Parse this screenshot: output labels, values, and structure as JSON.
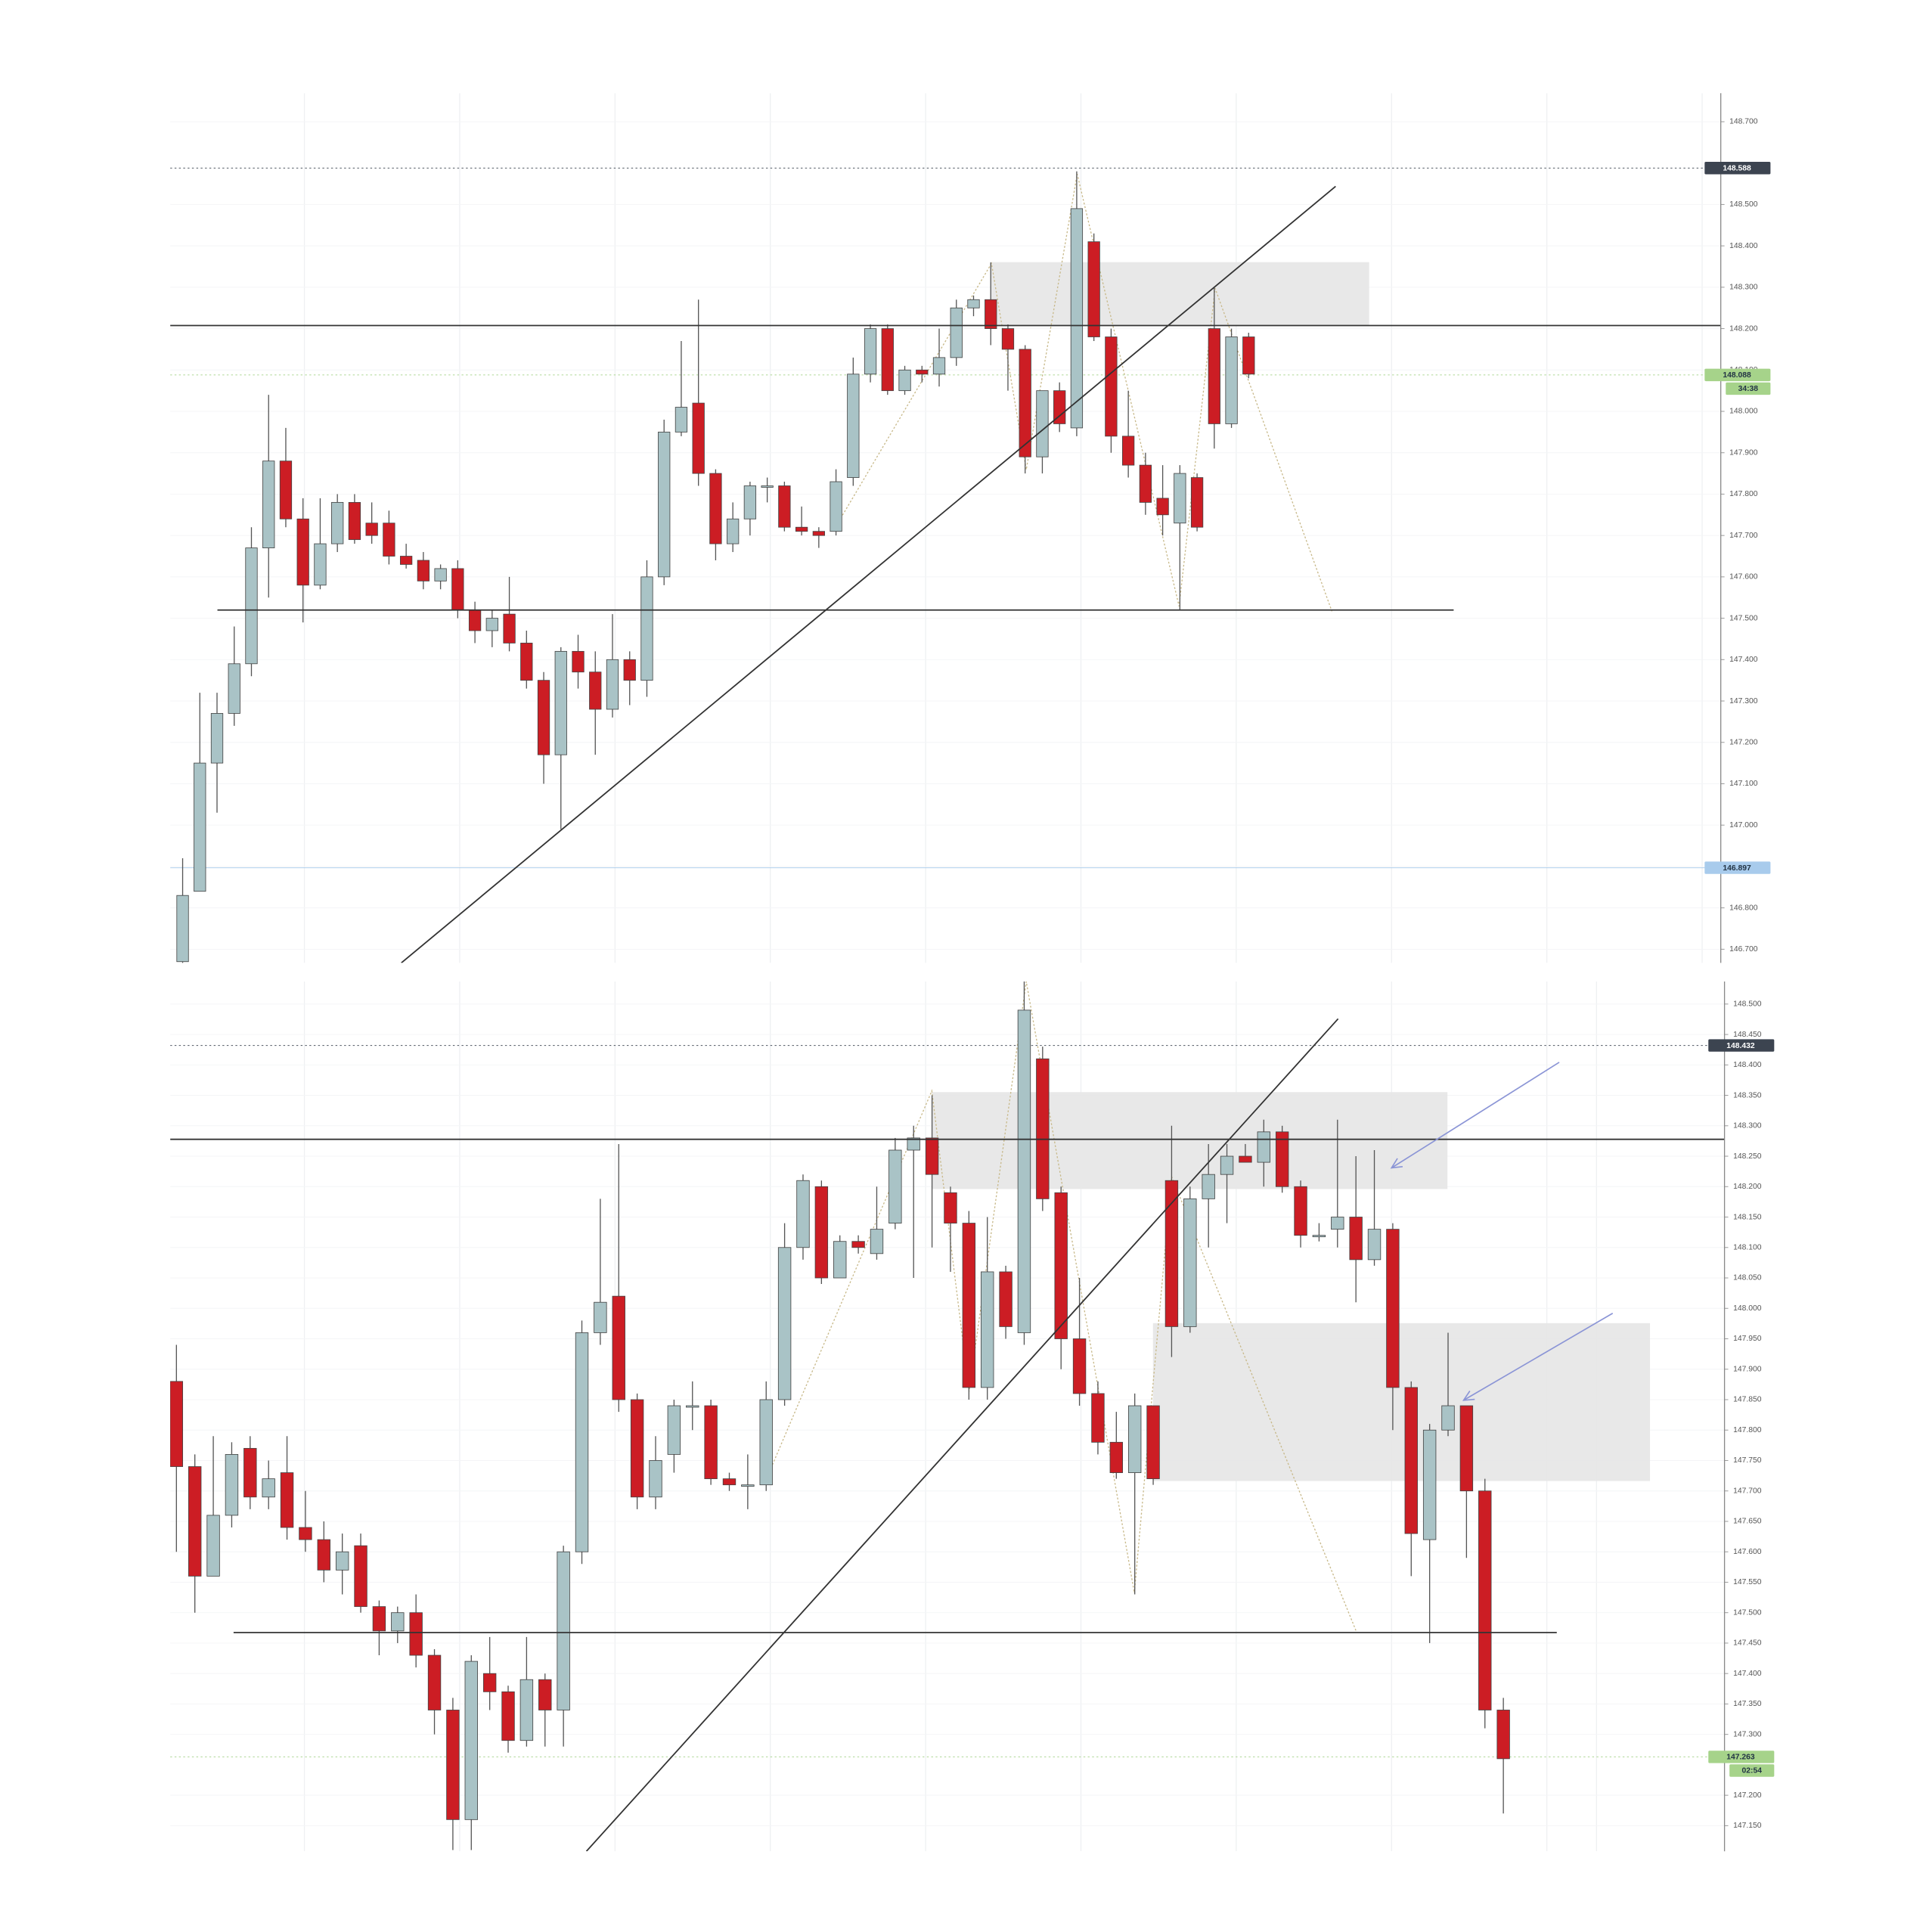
{
  "chart_data": [
    {
      "type": "candlestick",
      "up_color": "#a9c3c6",
      "down_color": "#cc1d24",
      "grid": true,
      "ylim": [
        146.667,
        148.769
      ],
      "yticks": [
        {
          "value": 148.7,
          "label": "148.700"
        },
        {
          "value": 148.5,
          "label": "148.500"
        },
        {
          "value": 148.4,
          "label": "148.400"
        },
        {
          "value": 148.3,
          "label": "148.300"
        },
        {
          "value": 148.2,
          "label": "148.200"
        },
        {
          "value": 148.1,
          "label": "148.100"
        },
        {
          "value": 148.0,
          "label": "148.000"
        },
        {
          "value": 147.9,
          "label": "147.900"
        },
        {
          "value": 147.8,
          "label": "147.800"
        },
        {
          "value": 147.7,
          "label": "147.700"
        },
        {
          "value": 147.6,
          "label": "147.600"
        },
        {
          "value": 147.5,
          "label": "147.500"
        },
        {
          "value": 147.4,
          "label": "147.400"
        },
        {
          "value": 147.3,
          "label": "147.300"
        },
        {
          "value": 147.2,
          "label": "147.200"
        },
        {
          "value": 147.1,
          "label": "147.100"
        },
        {
          "value": 147.0,
          "label": "147.000"
        },
        {
          "value": 146.9,
          "label": "146.900"
        },
        {
          "value": 146.8,
          "label": "146.800"
        },
        {
          "value": 146.7,
          "label": "146.700"
        }
      ],
      "price_tags": [
        {
          "value": 148.588,
          "color": "#3c4450"
        },
        {
          "value": 148.088,
          "color": "#a6d38a",
          "timer": "34:38"
        },
        {
          "value": 146.897,
          "color": "#a8cbec"
        }
      ],
      "open": [
        146.67,
        146.84,
        147.15,
        147.27,
        147.39,
        147.67,
        147.88,
        147.74,
        147.58,
        147.68,
        147.78,
        147.73,
        147.73,
        147.65,
        147.64,
        147.59,
        147.62,
        147.52,
        147.47,
        147.51,
        147.44,
        147.35,
        147.17,
        147.42,
        147.37,
        147.28,
        147.4,
        147.35,
        147.6,
        147.95,
        148.02,
        147.85,
        147.68,
        147.74,
        147.82,
        147.82,
        147.72,
        147.71,
        147.71,
        147.84,
        148.09,
        148.2,
        148.05,
        148.1,
        148.09,
        148.13,
        148.25,
        148.27,
        148.2,
        148.15,
        147.89,
        148.05,
        147.96,
        148.41,
        148.18,
        147.94,
        147.87,
        147.79,
        147.73,
        147.84,
        148.2,
        147.97,
        148.18
      ],
      "high": [
        146.92,
        147.32,
        147.32,
        147.48,
        147.72,
        148.04,
        147.96,
        147.79,
        147.79,
        147.8,
        147.8,
        147.78,
        147.76,
        147.68,
        147.66,
        147.63,
        147.64,
        147.54,
        147.52,
        147.6,
        147.47,
        147.37,
        147.43,
        147.46,
        147.42,
        147.51,
        147.42,
        147.64,
        147.98,
        148.17,
        148.27,
        147.86,
        147.78,
        147.83,
        147.84,
        147.83,
        147.77,
        147.72,
        147.86,
        148.13,
        148.21,
        148.21,
        148.11,
        148.11,
        148.2,
        148.27,
        148.28,
        148.36,
        148.21,
        148.16,
        148.05,
        148.07,
        148.58,
        148.43,
        148.2,
        148.05,
        147.9,
        147.87,
        147.87,
        147.85,
        148.3,
        148.2,
        148.19
      ],
      "low": [
        146.66,
        146.84,
        147.03,
        147.24,
        147.36,
        147.55,
        147.72,
        147.49,
        147.57,
        147.66,
        147.68,
        147.68,
        147.63,
        147.62,
        147.57,
        147.57,
        147.5,
        147.44,
        147.43,
        147.42,
        147.33,
        147.1,
        146.99,
        147.33,
        147.17,
        147.26,
        147.29,
        147.31,
        147.58,
        147.94,
        147.82,
        147.64,
        147.66,
        147.7,
        147.78,
        147.71,
        147.7,
        147.67,
        147.7,
        147.82,
        148.07,
        148.04,
        148.04,
        148.07,
        148.06,
        148.11,
        148.23,
        148.16,
        148.05,
        147.85,
        147.85,
        147.95,
        147.94,
        148.17,
        147.9,
        147.84,
        147.75,
        147.7,
        147.52,
        147.71,
        147.91,
        147.96,
        148.08
      ],
      "close": [
        146.83,
        147.15,
        147.27,
        147.39,
        147.67,
        147.88,
        147.74,
        147.58,
        147.68,
        147.78,
        147.69,
        147.7,
        147.65,
        147.63,
        147.59,
        147.62,
        147.52,
        147.47,
        147.5,
        147.44,
        147.35,
        147.17,
        147.42,
        147.37,
        147.28,
        147.4,
        147.35,
        147.6,
        147.95,
        148.01,
        147.85,
        147.68,
        147.74,
        147.82,
        147.82,
        147.72,
        147.71,
        147.7,
        147.83,
        148.09,
        148.2,
        148.05,
        148.1,
        148.09,
        148.13,
        148.25,
        148.27,
        148.2,
        148.15,
        147.89,
        148.05,
        147.97,
        148.49,
        148.18,
        147.94,
        147.87,
        147.78,
        147.75,
        147.85,
        147.72,
        147.97,
        148.18,
        148.09
      ]
    },
    {
      "type": "candlestick",
      "up_color": "#a9c3c6",
      "down_color": "#cc1d24",
      "grid": true,
      "ylim": [
        147.108,
        148.537
      ],
      "yticks": [
        {
          "value": 148.5,
          "label": "148.500"
        },
        {
          "value": 148.45,
          "label": "148.450"
        },
        {
          "value": 148.4,
          "label": "148.400"
        },
        {
          "value": 148.35,
          "label": "148.350"
        },
        {
          "value": 148.3,
          "label": "148.300"
        },
        {
          "value": 148.25,
          "label": "148.250"
        },
        {
          "value": 148.2,
          "label": "148.200"
        },
        {
          "value": 148.15,
          "label": "148.150"
        },
        {
          "value": 148.1,
          "label": "148.100"
        },
        {
          "value": 148.05,
          "label": "148.050"
        },
        {
          "value": 148.0,
          "label": "148.000"
        },
        {
          "value": 147.95,
          "label": "147.950"
        },
        {
          "value": 147.9,
          "label": "147.900"
        },
        {
          "value": 147.85,
          "label": "147.850"
        },
        {
          "value": 147.8,
          "label": "147.800"
        },
        {
          "value": 147.75,
          "label": "147.750"
        },
        {
          "value": 147.7,
          "label": "147.700"
        },
        {
          "value": 147.65,
          "label": "147.650"
        },
        {
          "value": 147.6,
          "label": "147.600"
        },
        {
          "value": 147.55,
          "label": "147.550"
        },
        {
          "value": 147.5,
          "label": "147.500"
        },
        {
          "value": 147.45,
          "label": "147.450"
        },
        {
          "value": 147.4,
          "label": "147.400"
        },
        {
          "value": 147.35,
          "label": "147.350"
        },
        {
          "value": 147.3,
          "label": "147.300"
        },
        {
          "value": 147.2,
          "label": "147.200"
        },
        {
          "value": 147.15,
          "label": "147.150"
        }
      ],
      "price_tags": [
        {
          "value": 148.432,
          "color": "#3c4450"
        },
        {
          "value": 147.263,
          "color": "#a6d38a",
          "timer": "02:54"
        }
      ],
      "open": [
        147.88,
        147.74,
        147.56,
        147.66,
        147.77,
        147.69,
        147.73,
        147.64,
        147.62,
        147.57,
        147.61,
        147.51,
        147.47,
        147.5,
        147.43,
        147.34,
        147.16,
        147.4,
        147.37,
        147.29,
        147.39,
        147.34,
        147.6,
        147.96,
        148.02,
        147.85,
        147.69,
        147.76,
        147.84,
        147.84,
        147.72,
        147.71,
        147.71,
        147.85,
        148.1,
        148.2,
        148.05,
        148.11,
        148.09,
        148.14,
        148.26,
        148.28,
        148.19,
        148.14,
        147.87,
        148.06,
        147.96,
        148.41,
        148.19,
        147.95,
        147.86,
        147.78,
        147.73,
        147.84,
        148.21,
        147.97,
        148.18,
        148.22,
        148.25,
        148.24,
        148.29,
        148.2,
        148.12,
        148.13,
        148.15,
        148.08,
        148.13,
        147.87,
        147.62,
        147.8,
        147.84,
        147.7,
        147.34
      ],
      "high": [
        147.94,
        147.76,
        147.79,
        147.78,
        147.79,
        147.75,
        147.79,
        147.7,
        147.65,
        147.63,
        147.63,
        147.52,
        147.51,
        147.53,
        147.44,
        147.36,
        147.43,
        147.46,
        147.38,
        147.46,
        147.4,
        147.61,
        147.98,
        148.18,
        148.27,
        147.86,
        147.79,
        147.85,
        147.88,
        147.85,
        147.73,
        147.76,
        147.88,
        148.14,
        148.22,
        148.21,
        148.12,
        148.12,
        148.2,
        148.28,
        148.3,
        148.35,
        148.2,
        148.16,
        148.15,
        148.07,
        148.54,
        148.43,
        148.2,
        148.05,
        147.88,
        147.83,
        147.86,
        147.84,
        148.3,
        148.2,
        148.27,
        148.27,
        148.27,
        148.31,
        148.3,
        148.21,
        148.14,
        148.31,
        148.25,
        148.26,
        148.14,
        147.88,
        147.81,
        147.96,
        147.84,
        147.72,
        147.36
      ],
      "low": [
        147.6,
        147.5,
        147.56,
        147.64,
        147.67,
        147.67,
        147.62,
        147.6,
        147.55,
        147.53,
        147.5,
        147.43,
        147.45,
        147.41,
        147.3,
        147.11,
        147.11,
        147.34,
        147.27,
        147.28,
        147.28,
        147.28,
        147.58,
        147.94,
        147.83,
        147.67,
        147.67,
        147.73,
        147.8,
        147.71,
        147.7,
        147.67,
        147.7,
        147.84,
        148.08,
        148.04,
        148.05,
        148.09,
        148.08,
        148.13,
        148.05,
        148.1,
        148.06,
        147.85,
        147.85,
        147.95,
        147.94,
        148.16,
        147.9,
        147.84,
        147.76,
        147.72,
        147.53,
        147.71,
        147.92,
        147.96,
        148.1,
        148.14,
        148.24,
        148.2,
        148.19,
        148.1,
        148.11,
        148.1,
        148.01,
        148.07,
        147.8,
        147.56,
        147.45,
        147.79,
        147.59,
        147.31,
        147.17
      ],
      "close": [
        147.74,
        147.56,
        147.66,
        147.76,
        147.69,
        147.72,
        147.64,
        147.62,
        147.57,
        147.6,
        147.51,
        147.47,
        147.5,
        147.43,
        147.34,
        147.16,
        147.42,
        147.37,
        147.29,
        147.39,
        147.34,
        147.6,
        147.96,
        148.01,
        147.85,
        147.69,
        147.75,
        147.84,
        147.84,
        147.72,
        147.71,
        147.71,
        147.85,
        148.1,
        148.21,
        148.05,
        148.11,
        148.1,
        148.13,
        148.26,
        148.28,
        148.22,
        148.14,
        147.87,
        148.06,
        147.97,
        148.49,
        148.18,
        147.95,
        147.86,
        147.78,
        147.73,
        147.84,
        147.72,
        147.97,
        148.18,
        148.22,
        148.25,
        148.24,
        148.29,
        148.2,
        148.12,
        148.12,
        148.15,
        148.08,
        148.13,
        147.87,
        147.63,
        147.8,
        147.84,
        147.7,
        147.34,
        147.26
      ]
    }
  ]
}
